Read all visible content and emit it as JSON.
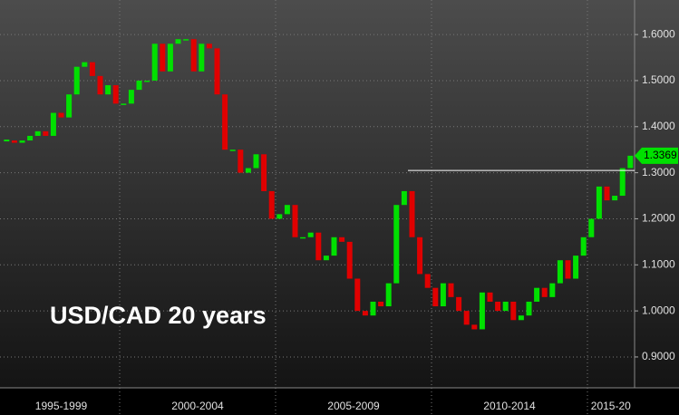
{
  "chart_data": {
    "type": "candlestick",
    "title": "USD/CAD 20 years",
    "periods": [
      {
        "label": "1995-1999",
        "values": [
          1.37,
          1.365,
          1.37,
          1.38,
          1.39,
          1.38,
          1.43,
          1.42,
          1.47,
          1.53,
          1.54,
          1.51,
          1.47,
          1.49,
          1.45
        ]
      },
      {
        "label": "2000-2004",
        "values": [
          1.45,
          1.48,
          1.5,
          1.5,
          1.58,
          1.52,
          1.58,
          1.59,
          1.59,
          1.52,
          1.58,
          1.57,
          1.47,
          1.35,
          1.35,
          1.3,
          1.31,
          1.34,
          1.26,
          1.2
        ]
      },
      {
        "label": "2005-2009",
        "values": [
          1.21,
          1.23,
          1.16,
          1.16,
          1.17,
          1.11,
          1.12,
          1.16,
          1.15,
          1.07,
          1.0,
          0.99,
          1.02,
          1.01,
          1.06,
          1.23,
          1.26,
          1.16,
          1.08,
          1.05
        ]
      },
      {
        "label": "2010-2014",
        "values": [
          1.01,
          1.06,
          1.03,
          1.0,
          0.97,
          0.96,
          1.04,
          1.02,
          1.0,
          1.02,
          0.98,
          0.99,
          1.02,
          1.05,
          1.03,
          1.06,
          1.11,
          1.07,
          1.12,
          1.16
        ]
      },
      {
        "label": "2015-20",
        "values": [
          1.2,
          1.27,
          1.24,
          1.25,
          1.31,
          1.3369
        ]
      }
    ],
    "up_color": "#00e000",
    "down_color": "#e00000",
    "ylim": [
      0.833,
      1.675
    ],
    "yticks": [
      {
        "value": 0.9,
        "label": "0.9000"
      },
      {
        "value": 1.0,
        "label": "1.0000"
      },
      {
        "value": 1.1,
        "label": "1.1000"
      },
      {
        "value": 1.2,
        "label": "1.2000"
      },
      {
        "value": 1.3,
        "label": "1.3000"
      },
      {
        "value": 1.4,
        "label": "1.4000"
      },
      {
        "value": 1.5,
        "label": "1.5000"
      },
      {
        "value": 1.6,
        "label": "1.6000"
      }
    ],
    "grid": true,
    "reference_line": 1.305,
    "last_price": {
      "value": 1.3369,
      "label": "1.3369"
    }
  }
}
